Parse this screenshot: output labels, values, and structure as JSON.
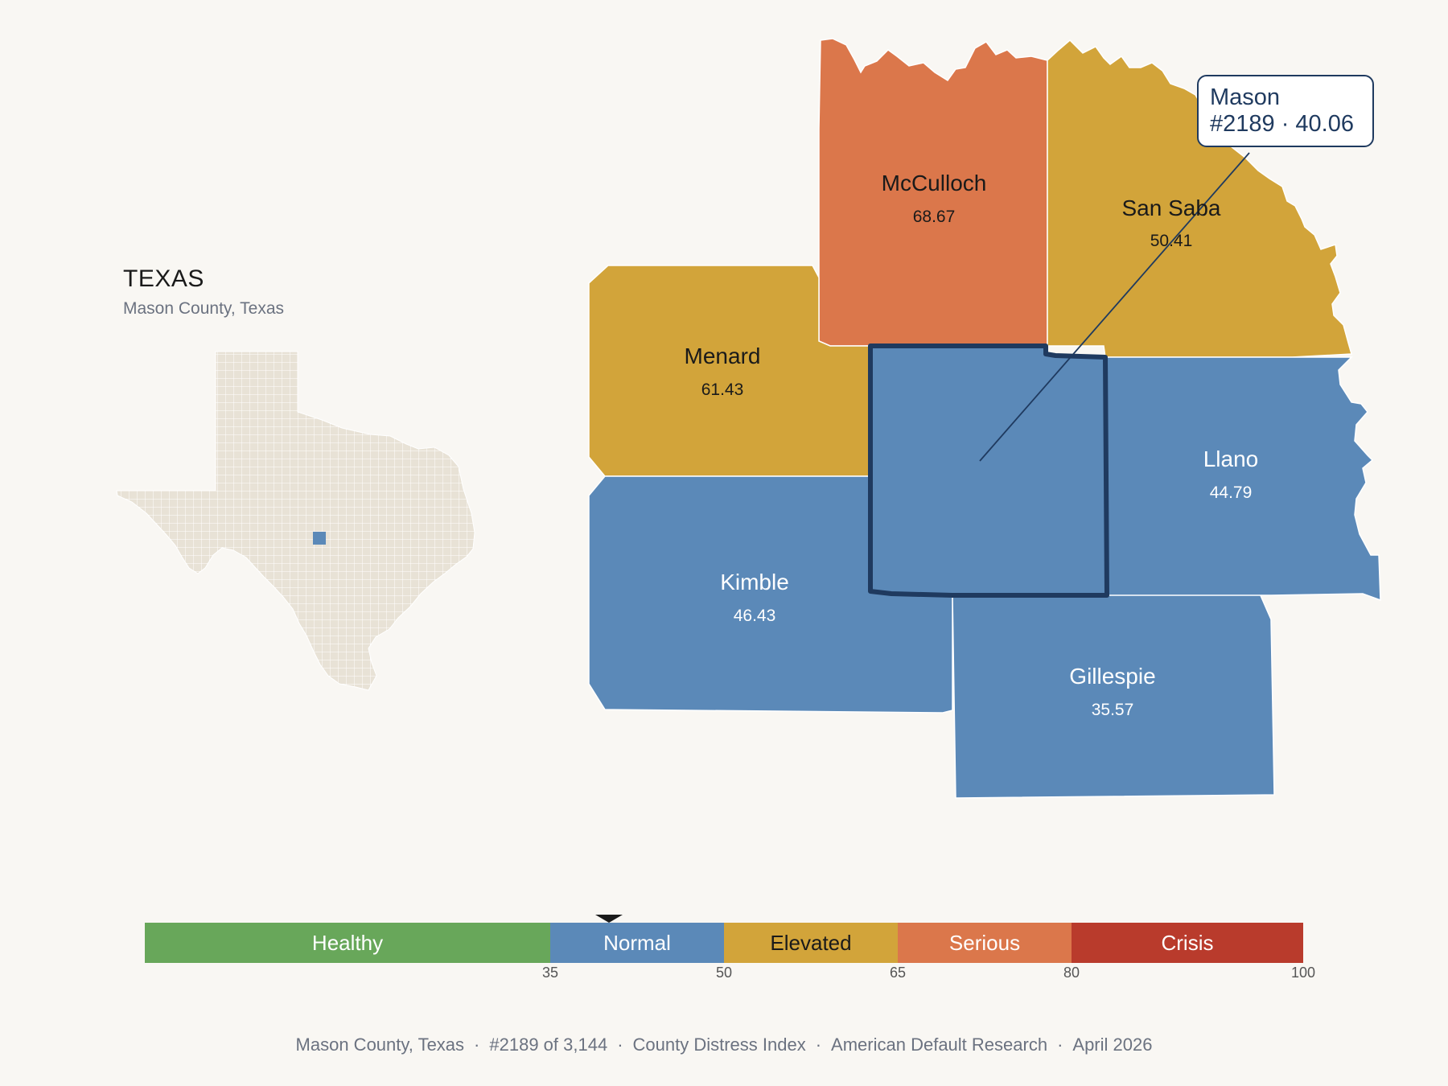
{
  "inset": {
    "title": "TEXAS",
    "subtitle": "Mason County, Texas",
    "state_fill": "#e8e2d6",
    "highlight_fill": "#5b89b8"
  },
  "map": {
    "selected_outline": "#1f3a5f",
    "counties": [
      {
        "key": "mcculloch",
        "name": "McCulloch",
        "value": "68.67",
        "fill": "#db774b",
        "text": "#1a1a1a"
      },
      {
        "key": "sansaba",
        "name": "San Saba",
        "value": "50.41",
        "fill": "#d2a43a",
        "text": "#1a1a1a"
      },
      {
        "key": "menard",
        "name": "Menard",
        "value": "61.43",
        "fill": "#d2a43a",
        "text": "#1a1a1a"
      },
      {
        "key": "mason",
        "name": "Mason",
        "value": "40.06",
        "fill": "#5b89b8",
        "text": "#ffffff",
        "selected": true
      },
      {
        "key": "llano",
        "name": "Llano",
        "value": "44.79",
        "fill": "#5b89b8",
        "text": "#ffffff"
      },
      {
        "key": "kimble",
        "name": "Kimble",
        "value": "46.43",
        "fill": "#5b89b8",
        "text": "#ffffff"
      },
      {
        "key": "gillespie",
        "name": "Gillespie",
        "value": "35.57",
        "fill": "#5b89b8",
        "text": "#ffffff"
      }
    ]
  },
  "callout": {
    "name": "Mason",
    "detail": "#2189 · 40.06"
  },
  "legend": {
    "min": 0,
    "max": 100,
    "current_value": 40.06,
    "segments": [
      {
        "label": "Healthy",
        "from": 0,
        "to": 35,
        "color": "#68a75a",
        "text": "#ffffff"
      },
      {
        "label": "Normal",
        "from": 35,
        "to": 50,
        "color": "#5b89b8",
        "text": "#ffffff"
      },
      {
        "label": "Elevated",
        "from": 50,
        "to": 65,
        "color": "#d2a43a",
        "text": "#1a1a1a"
      },
      {
        "label": "Serious",
        "from": 65,
        "to": 80,
        "color": "#db774b",
        "text": "#ffffff"
      },
      {
        "label": "Crisis",
        "from": 80,
        "to": 100,
        "color": "#b93b2c",
        "text": "#ffffff"
      }
    ],
    "ticks": [
      "35",
      "50",
      "65",
      "80",
      "100"
    ]
  },
  "footer": {
    "items": [
      "Mason County, Texas",
      "#2189 of 3,144",
      "County Distress Index",
      "American Default Research",
      "April 2026"
    ],
    "separator": "·"
  }
}
